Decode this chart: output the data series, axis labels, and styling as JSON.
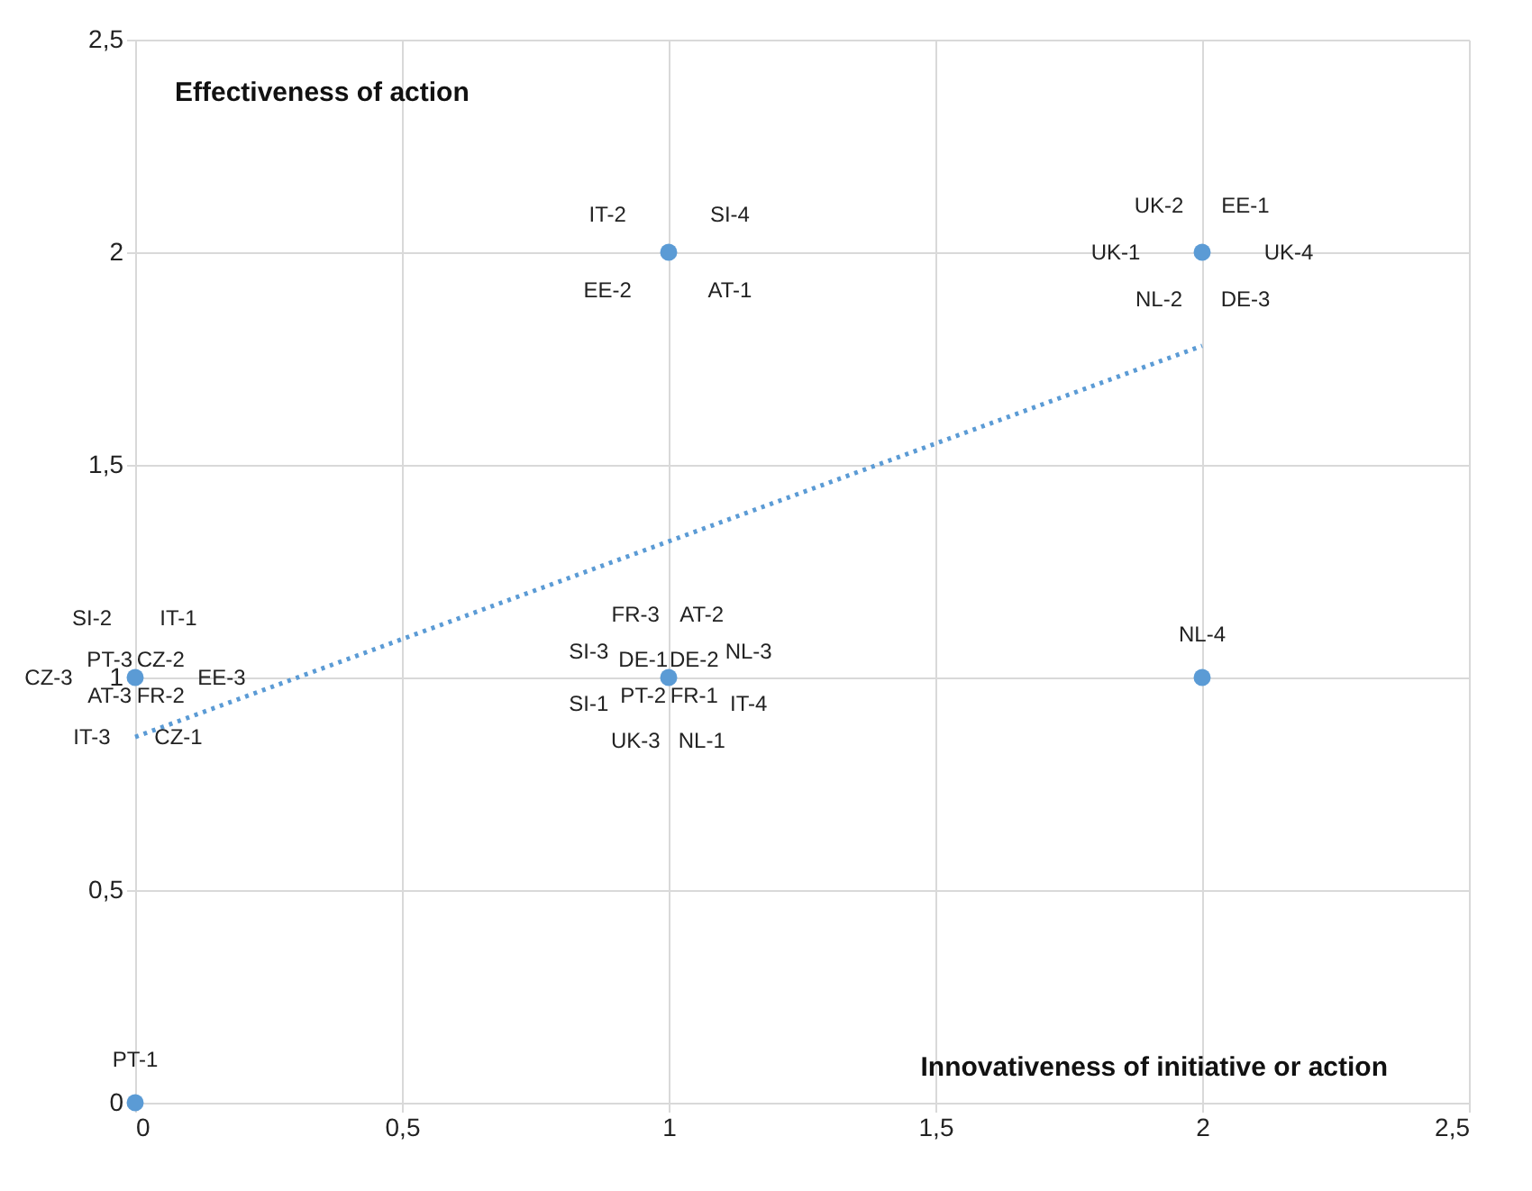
{
  "chart_data": {
    "type": "scatter",
    "xlabel": "Innovativeness of initiative or action",
    "ylabel": "Effectiveness of action",
    "xlim": [
      0,
      2.5
    ],
    "ylim": [
      0,
      2.5
    ],
    "xticks": [
      0,
      {
        "value": 0.5,
        "label": "0,5"
      },
      1,
      {
        "value": 1.5,
        "label": "1,5"
      },
      2,
      {
        "value": 2.5,
        "label": "2,5"
      }
    ],
    "yticks": [
      0,
      {
        "value": 0.5,
        "label": "0,5"
      },
      1,
      {
        "value": 1.5,
        "label": "1,5"
      },
      2,
      {
        "value": 2.5,
        "label": "2,5"
      }
    ],
    "grid": true,
    "marker": "circle",
    "series": [
      {
        "color": "#5b9bd5",
        "x": [
          0,
          0,
          1,
          1,
          2,
          2
        ],
        "values": [
          0,
          1,
          1,
          2,
          2,
          1
        ]
      },
      {
        "type": "line",
        "color": "#5b9bd5",
        "line_style": "dotted",
        "marker": "none",
        "x": [
          0,
          2
        ],
        "values": [
          0.86,
          1.78
        ]
      }
    ],
    "annotations": [
      {
        "text": "PT-1",
        "x": 0,
        "y": 0
      },
      {
        "text": "CZ-2",
        "x": 0,
        "y": 1
      },
      {
        "text": "FR-2",
        "x": 0,
        "y": 1
      },
      {
        "text": "AT-3",
        "x": 0,
        "y": 1
      },
      {
        "text": "PT-3",
        "x": 0,
        "y": 1
      },
      {
        "text": "IT-1",
        "x": 0,
        "y": 1
      },
      {
        "text": "EE-3",
        "x": 0,
        "y": 1
      },
      {
        "text": "CZ-1",
        "x": 0,
        "y": 1
      },
      {
        "text": "IT-3",
        "x": 0,
        "y": 1
      },
      {
        "text": "CZ-3",
        "x": 0,
        "y": 1
      },
      {
        "text": "SI-2",
        "x": 0,
        "y": 1
      },
      {
        "text": "SI-4",
        "x": 1,
        "y": 2
      },
      {
        "text": "AT-1",
        "x": 1,
        "y": 2
      },
      {
        "text": "EE-2",
        "x": 1,
        "y": 2
      },
      {
        "text": "IT-2",
        "x": 1,
        "y": 2
      },
      {
        "text": "EE-1",
        "x": 2,
        "y": 2
      },
      {
        "text": "UK-4",
        "x": 2,
        "y": 2
      },
      {
        "text": "DE-3",
        "x": 2,
        "y": 2
      },
      {
        "text": "NL-2",
        "x": 2,
        "y": 2
      },
      {
        "text": "UK-1",
        "x": 2,
        "y": 2
      },
      {
        "text": "UK-2",
        "x": 2,
        "y": 2
      },
      {
        "text": "DE-2",
        "x": 1,
        "y": 1
      },
      {
        "text": "FR-1",
        "x": 1,
        "y": 1
      },
      {
        "text": "PT-2",
        "x": 1,
        "y": 1
      },
      {
        "text": "DE-1",
        "x": 1,
        "y": 1
      },
      {
        "text": "AT-2",
        "x": 1,
        "y": 1
      },
      {
        "text": "NL-3",
        "x": 1,
        "y": 1
      },
      {
        "text": "IT-4",
        "x": 1,
        "y": 1
      },
      {
        "text": "NL-1",
        "x": 1,
        "y": 1
      },
      {
        "text": "UK-3",
        "x": 1,
        "y": 1
      },
      {
        "text": "SI-1",
        "x": 1,
        "y": 1
      },
      {
        "text": "SI-3",
        "x": 1,
        "y": 1
      },
      {
        "text": "FR-3",
        "x": 1,
        "y": 1
      },
      {
        "text": "NL-4",
        "x": 2,
        "y": 1
      }
    ]
  }
}
